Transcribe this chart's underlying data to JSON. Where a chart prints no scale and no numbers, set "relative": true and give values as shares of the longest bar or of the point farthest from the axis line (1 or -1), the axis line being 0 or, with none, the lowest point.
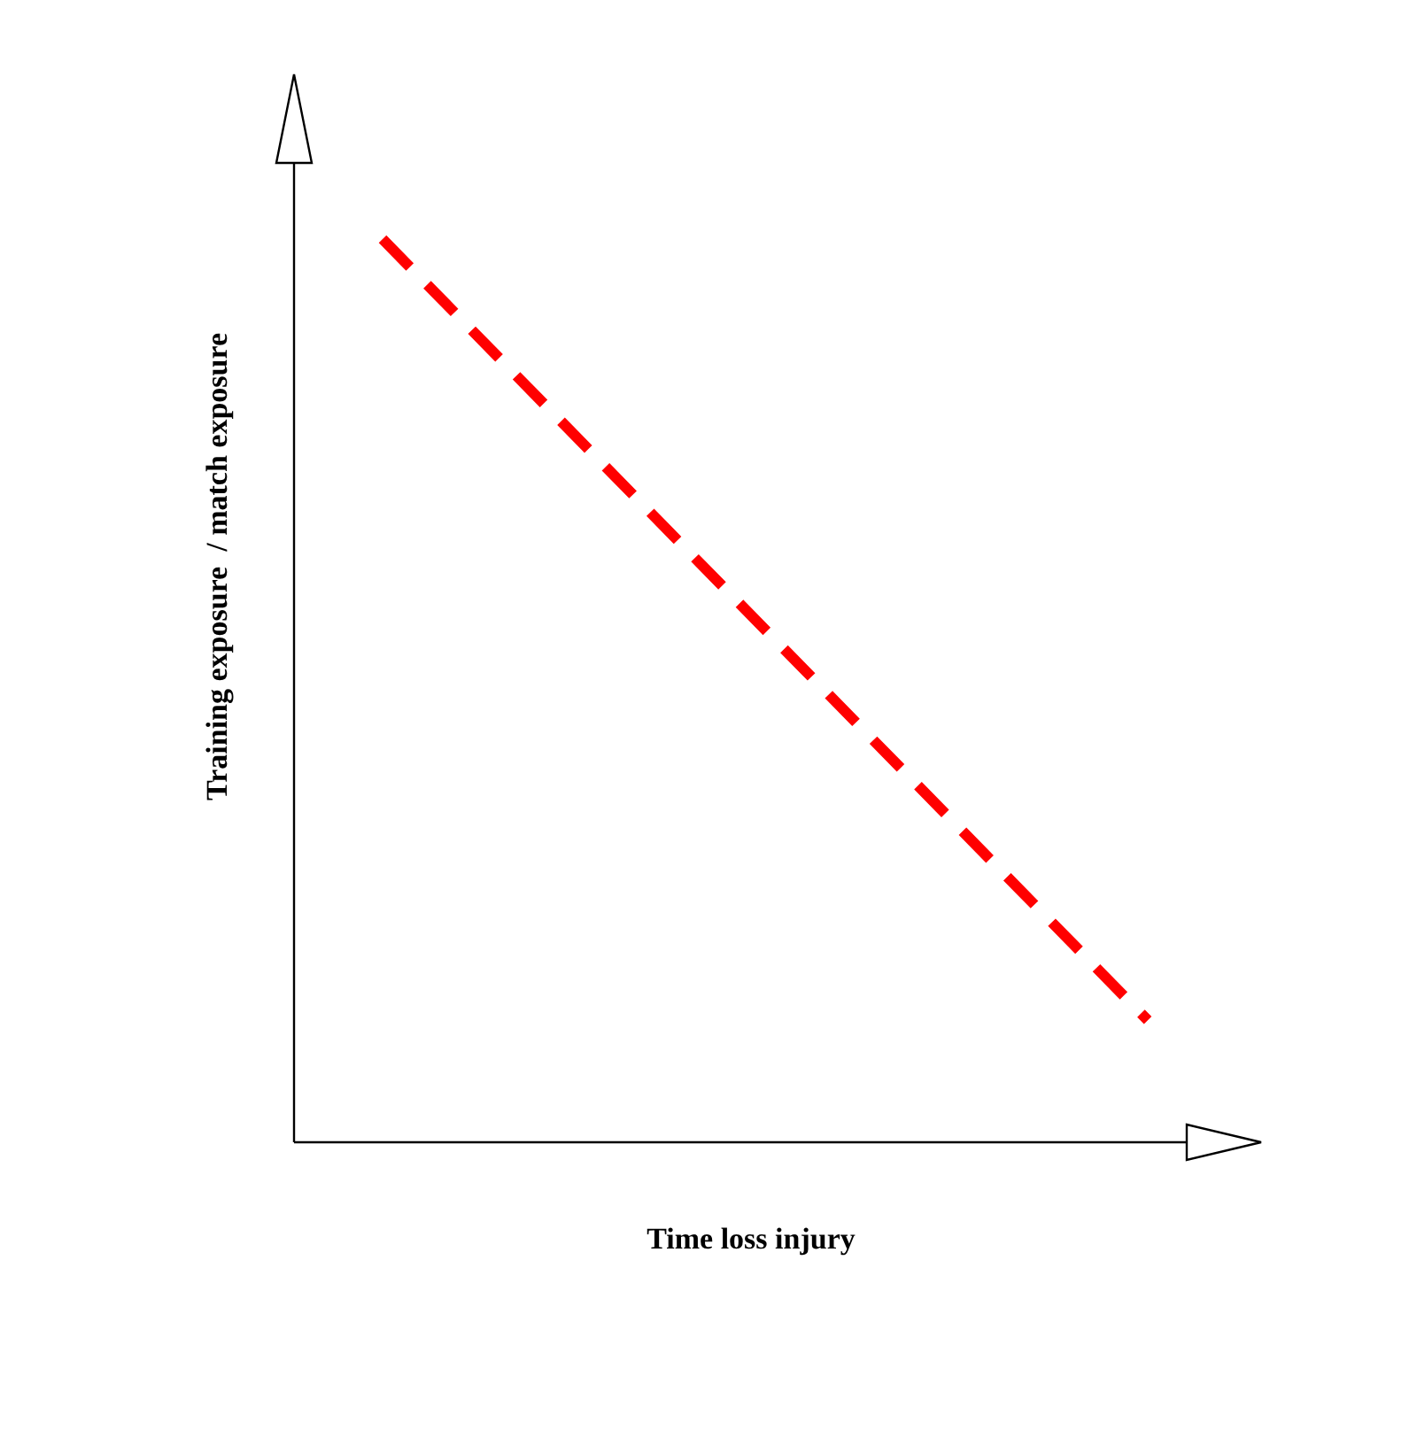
{
  "chart_data": {
    "type": "line",
    "relative": true,
    "xlabel": "Time loss injury",
    "ylabel": "Training exposure  / match exposure",
    "categories": [
      null,
      null
    ],
    "series": [
      {
        "color": "#ff0000",
        "values": [
          1,
          0.135
        ]
      }
    ],
    "line_style": "dashed",
    "marker": "none"
  }
}
